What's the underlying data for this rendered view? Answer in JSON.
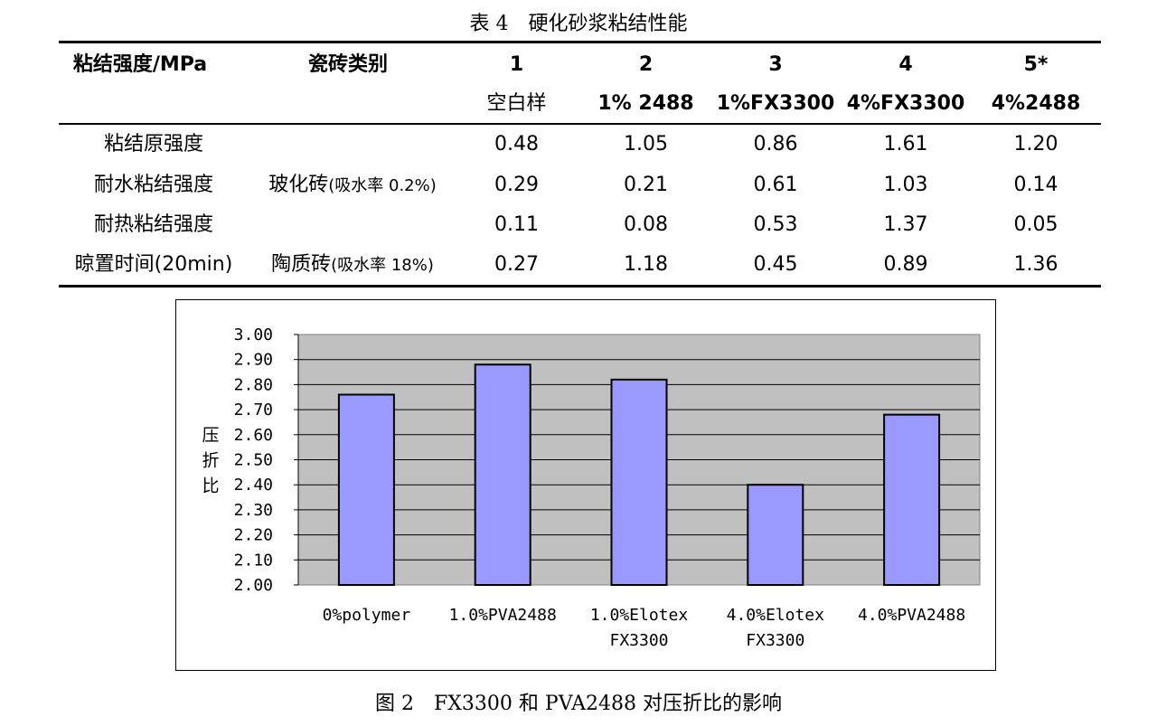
{
  "table": {
    "caption": "表 4　硬化砂浆粘结性能",
    "header": {
      "col1": "粘结强度/MPa",
      "col2": "瓷砖类别",
      "numbers": [
        "1",
        "2",
        "3",
        "4",
        "5*"
      ],
      "names": [
        "空白样",
        "1% 2488",
        "1%FX3300",
        "4%FX3300",
        "4%2488"
      ]
    },
    "rows": [
      {
        "label": "粘结原强度",
        "tile": "",
        "tile_note": "",
        "values": [
          "0.48",
          "1.05",
          "0.86",
          "1.61",
          "1.20"
        ]
      },
      {
        "label": "耐水粘结强度",
        "tile": "玻化砖",
        "tile_note": "(吸水率 0.2%)",
        "values": [
          "0.29",
          "0.21",
          "0.61",
          "1.03",
          "0.14"
        ]
      },
      {
        "label": "耐热粘结强度",
        "tile": "",
        "tile_note": "",
        "values": [
          "0.11",
          "0.08",
          "0.53",
          "1.37",
          "0.05"
        ]
      },
      {
        "label": "晾置时间(20min)",
        "tile": "陶质砖",
        "tile_note": "(吸水率 18%)",
        "values": [
          "0.27",
          "1.18",
          "0.45",
          "0.89",
          "1.36"
        ]
      }
    ]
  },
  "chart_data": {
    "type": "bar",
    "categories": [
      "0%polymer",
      "1.0%PVA2488",
      "1.0%Elotex FX3300",
      "4.0%Elotex FX3300",
      "4.0%PVA2488"
    ],
    "category_lines": [
      [
        "0%polymer"
      ],
      [
        "1.0%PVA2488"
      ],
      [
        "1.0%Elotex",
        "FX3300"
      ],
      [
        "4.0%Elotex",
        "FX3300"
      ],
      [
        "4.0%PVA2488"
      ]
    ],
    "values": [
      2.76,
      2.88,
      2.82,
      2.4,
      2.68
    ],
    "ylabel": "压折比",
    "ylim": [
      2.0,
      3.0
    ],
    "yticks": [
      "3.00",
      "2.90",
      "2.80",
      "2.70",
      "2.60",
      "2.50",
      "2.40",
      "2.30",
      "2.20",
      "2.10",
      "2.00"
    ],
    "grid": true,
    "colors": {
      "bar": "#9999FF",
      "plot_bg": "#C0C0C0",
      "grid": "#000000"
    }
  },
  "figure_caption": "图 2　FX3300 和 PVA2488 对压折比的影响"
}
